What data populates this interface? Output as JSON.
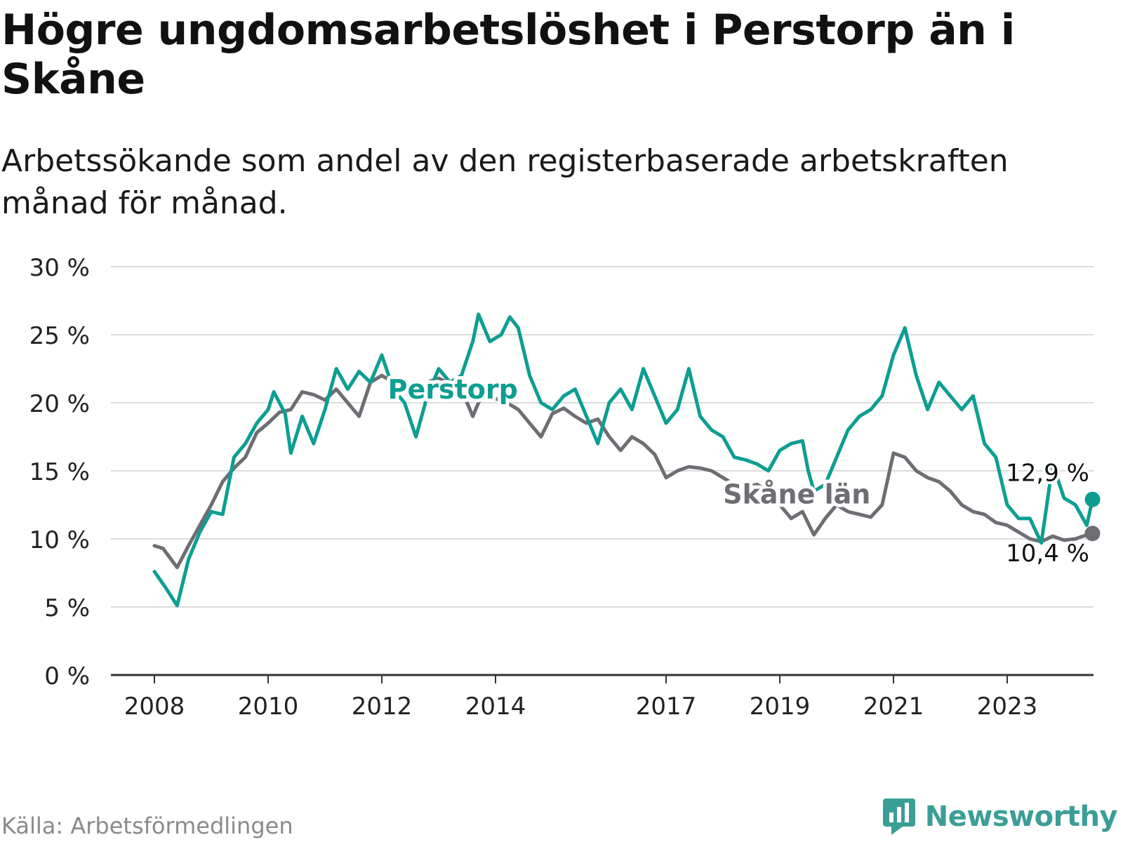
{
  "title": "Högre ungdomsarbetslöshet i Perstorp än i Skåne",
  "subtitle": "Arbetssökande som andel av den registerbaserade arbetskraften månad för månad.",
  "source": "Källa: Arbetsförmedlingen",
  "brand": "Newsworthy",
  "colors": {
    "perstorp": "#0d9e92",
    "skane": "#6d6d73",
    "grid": "#dcdcdc",
    "axis": "#333333",
    "text": "#222222"
  },
  "icons": {
    "logo": "newsworthy-logo-icon"
  },
  "chart_data": {
    "type": "line",
    "title": "Högre ungdomsarbetslöshet i Perstorp än i Skåne",
    "xlabel": "",
    "ylabel": "",
    "ylim": [
      0,
      30
    ],
    "xlim": [
      2007.6,
      2024.5
    ],
    "y_ticks": [
      0,
      5,
      10,
      15,
      20,
      25,
      30
    ],
    "y_tick_labels": [
      "0 %",
      "5 %",
      "10 %",
      "15 %",
      "20 %",
      "25 %",
      "30 %"
    ],
    "x_ticks": [
      2008,
      2010,
      2012,
      2014,
      2017,
      2019,
      2021,
      2023
    ],
    "x_tick_labels": [
      "2008",
      "2010",
      "2012",
      "2014",
      "2017",
      "2019",
      "2021",
      "2023"
    ],
    "grid": true,
    "series": [
      {
        "name": "Perstorp",
        "color": "#0d9e92",
        "end_label": "12,9 %",
        "points": [
          [
            2008.0,
            7.6
          ],
          [
            2008.2,
            6.4
          ],
          [
            2008.4,
            5.1
          ],
          [
            2008.6,
            8.5
          ],
          [
            2008.8,
            10.5
          ],
          [
            2009.0,
            12.0
          ],
          [
            2009.2,
            11.8
          ],
          [
            2009.4,
            16.0
          ],
          [
            2009.6,
            17.0
          ],
          [
            2009.8,
            18.5
          ],
          [
            2010.0,
            19.5
          ],
          [
            2010.1,
            20.8
          ],
          [
            2010.3,
            19.2
          ],
          [
            2010.4,
            16.3
          ],
          [
            2010.6,
            19.0
          ],
          [
            2010.8,
            17.0
          ],
          [
            2011.0,
            19.5
          ],
          [
            2011.2,
            22.5
          ],
          [
            2011.4,
            21.0
          ],
          [
            2011.6,
            22.3
          ],
          [
            2011.8,
            21.5
          ],
          [
            2012.0,
            23.5
          ],
          [
            2012.2,
            21.0
          ],
          [
            2012.4,
            20.0
          ],
          [
            2012.6,
            17.5
          ],
          [
            2012.8,
            20.5
          ],
          [
            2013.0,
            22.5
          ],
          [
            2013.2,
            21.5
          ],
          [
            2013.4,
            22.0
          ],
          [
            2013.6,
            24.5
          ],
          [
            2013.7,
            26.5
          ],
          [
            2013.9,
            24.5
          ],
          [
            2014.1,
            25.0
          ],
          [
            2014.25,
            26.3
          ],
          [
            2014.4,
            25.5
          ],
          [
            2014.6,
            22.0
          ],
          [
            2014.8,
            20.0
          ],
          [
            2015.0,
            19.5
          ],
          [
            2015.2,
            20.5
          ],
          [
            2015.4,
            21.0
          ],
          [
            2015.6,
            19.0
          ],
          [
            2015.8,
            17.0
          ],
          [
            2016.0,
            20.0
          ],
          [
            2016.2,
            21.0
          ],
          [
            2016.4,
            19.5
          ],
          [
            2016.6,
            22.5
          ],
          [
            2016.8,
            20.5
          ],
          [
            2017.0,
            18.5
          ],
          [
            2017.2,
            19.5
          ],
          [
            2017.4,
            22.5
          ],
          [
            2017.6,
            19.0
          ],
          [
            2017.8,
            18.0
          ],
          [
            2018.0,
            17.5
          ],
          [
            2018.2,
            16.0
          ],
          [
            2018.4,
            15.8
          ],
          [
            2018.6,
            15.5
          ],
          [
            2018.8,
            15.0
          ],
          [
            2019.0,
            16.5
          ],
          [
            2019.2,
            17.0
          ],
          [
            2019.4,
            17.2
          ],
          [
            2019.5,
            15.0
          ],
          [
            2019.6,
            13.5
          ],
          [
            2019.8,
            14.0
          ],
          [
            2020.0,
            16.0
          ],
          [
            2020.2,
            18.0
          ],
          [
            2020.4,
            19.0
          ],
          [
            2020.6,
            19.5
          ],
          [
            2020.8,
            20.5
          ],
          [
            2021.0,
            23.5
          ],
          [
            2021.2,
            25.5
          ],
          [
            2021.4,
            22.0
          ],
          [
            2021.6,
            19.5
          ],
          [
            2021.8,
            21.5
          ],
          [
            2022.0,
            20.5
          ],
          [
            2022.2,
            19.5
          ],
          [
            2022.4,
            20.5
          ],
          [
            2022.6,
            17.0
          ],
          [
            2022.8,
            16.0
          ],
          [
            2023.0,
            12.5
          ],
          [
            2023.2,
            11.5
          ],
          [
            2023.4,
            11.5
          ],
          [
            2023.6,
            9.7
          ],
          [
            2023.8,
            15.5
          ],
          [
            2024.0,
            13.0
          ],
          [
            2024.2,
            12.5
          ],
          [
            2024.4,
            11.0
          ],
          [
            2024.5,
            12.9
          ]
        ]
      },
      {
        "name": "Skåne län",
        "color": "#6d6d73",
        "end_label": "10,4 %",
        "points": [
          [
            2008.0,
            9.5
          ],
          [
            2008.15,
            9.3
          ],
          [
            2008.4,
            7.9
          ],
          [
            2008.6,
            9.5
          ],
          [
            2008.8,
            11.0
          ],
          [
            2009.0,
            12.5
          ],
          [
            2009.2,
            14.2
          ],
          [
            2009.4,
            15.2
          ],
          [
            2009.6,
            16.0
          ],
          [
            2009.8,
            17.8
          ],
          [
            2010.0,
            18.5
          ],
          [
            2010.2,
            19.3
          ],
          [
            2010.4,
            19.5
          ],
          [
            2010.6,
            20.8
          ],
          [
            2010.8,
            20.6
          ],
          [
            2011.0,
            20.2
          ],
          [
            2011.2,
            21.0
          ],
          [
            2011.4,
            20.0
          ],
          [
            2011.6,
            19.0
          ],
          [
            2011.8,
            21.5
          ],
          [
            2012.0,
            22.0
          ],
          [
            2012.2,
            21.5
          ],
          [
            2012.4,
            21.0
          ],
          [
            2012.6,
            20.5
          ],
          [
            2012.8,
            21.5
          ],
          [
            2013.0,
            21.8
          ],
          [
            2013.2,
            21.4
          ],
          [
            2013.4,
            21.0
          ],
          [
            2013.6,
            19.0
          ],
          [
            2013.8,
            21.0
          ],
          [
            2014.0,
            20.3
          ],
          [
            2014.2,
            20.0
          ],
          [
            2014.4,
            19.5
          ],
          [
            2014.6,
            18.5
          ],
          [
            2014.8,
            17.5
          ],
          [
            2015.0,
            19.2
          ],
          [
            2015.2,
            19.6
          ],
          [
            2015.4,
            19.0
          ],
          [
            2015.6,
            18.5
          ],
          [
            2015.8,
            18.8
          ],
          [
            2016.0,
            17.5
          ],
          [
            2016.2,
            16.5
          ],
          [
            2016.4,
            17.5
          ],
          [
            2016.6,
            17.0
          ],
          [
            2016.8,
            16.2
          ],
          [
            2017.0,
            14.5
          ],
          [
            2017.2,
            15.0
          ],
          [
            2017.4,
            15.3
          ],
          [
            2017.6,
            15.2
          ],
          [
            2017.8,
            15.0
          ],
          [
            2018.0,
            14.5
          ],
          [
            2018.2,
            14.0
          ],
          [
            2018.4,
            13.8
          ],
          [
            2018.6,
            14.0
          ],
          [
            2018.8,
            13.5
          ],
          [
            2019.0,
            12.5
          ],
          [
            2019.2,
            11.5
          ],
          [
            2019.4,
            12.0
          ],
          [
            2019.6,
            10.3
          ],
          [
            2019.8,
            11.5
          ],
          [
            2020.0,
            12.5
          ],
          [
            2020.2,
            12.0
          ],
          [
            2020.4,
            11.8
          ],
          [
            2020.6,
            11.6
          ],
          [
            2020.8,
            12.5
          ],
          [
            2021.0,
            16.3
          ],
          [
            2021.2,
            16.0
          ],
          [
            2021.4,
            15.0
          ],
          [
            2021.6,
            14.5
          ],
          [
            2021.8,
            14.2
          ],
          [
            2022.0,
            13.5
          ],
          [
            2022.2,
            12.5
          ],
          [
            2022.4,
            12.0
          ],
          [
            2022.6,
            11.8
          ],
          [
            2022.8,
            11.2
          ],
          [
            2023.0,
            11.0
          ],
          [
            2023.2,
            10.5
          ],
          [
            2023.4,
            10.0
          ],
          [
            2023.6,
            9.8
          ],
          [
            2023.8,
            10.2
          ],
          [
            2024.0,
            9.9
          ],
          [
            2024.2,
            10.0
          ],
          [
            2024.4,
            10.3
          ],
          [
            2024.5,
            10.4
          ]
        ]
      }
    ],
    "annotations": [
      {
        "text": "Perstorp",
        "series": "Perstorp",
        "at_x": 2013.25,
        "at_y": 20.3
      },
      {
        "text": "Skåne län",
        "series": "Skåne län",
        "at_x": 2019.3,
        "at_y": 12.6
      }
    ]
  }
}
